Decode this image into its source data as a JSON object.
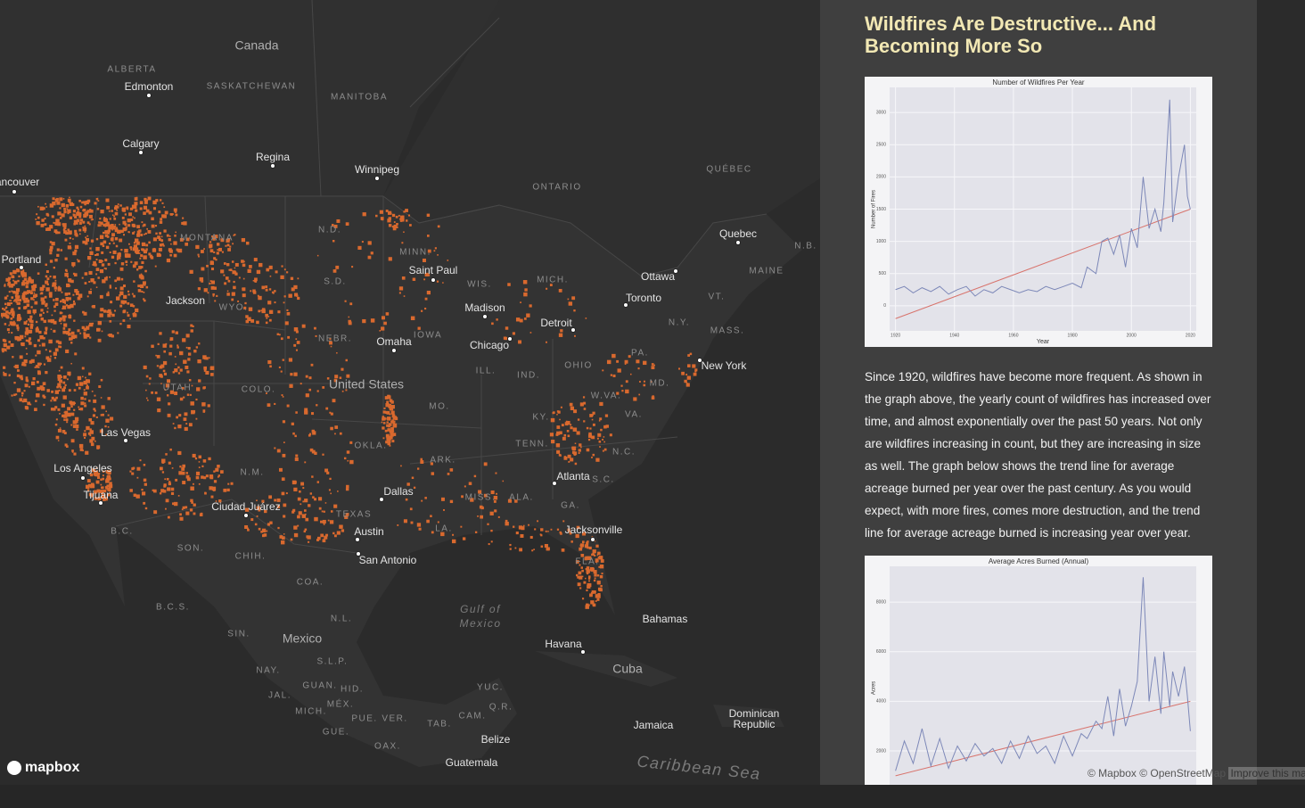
{
  "map": {
    "labels": [
      "Canada",
      "ALBERTA",
      "Edmonton",
      "SASKATCHEWAN",
      "MANITOBA",
      "Calgary",
      "Regina",
      "Winnipeg",
      "ONTARIO",
      "QUÉBEC",
      "Vancouver",
      "Quebec",
      "N.B.",
      "MAINE",
      "Ottawa",
      "Toronto",
      "VT.",
      "N.Y.",
      "MASS.",
      "New York",
      "PA.",
      "MD.",
      "N.D.",
      "MINN.",
      "Saint Paul",
      "MONTANA",
      "S.D.",
      "WIS.",
      "MICH.",
      "Portland",
      "Jackson",
      "WYO.",
      "Madison",
      "Detroit",
      "NEBR.",
      "IOWA",
      "Omaha",
      "Chicago",
      "OHIO",
      "ILL.",
      "IND.",
      "UTAH",
      "COLO.",
      "United States",
      "MO.",
      "W.VA.",
      "VA.",
      "KY.",
      "Las Vegas",
      "TENN.",
      "N.C.",
      "ARK.",
      "OKLA.",
      "Los Angeles",
      "Tijuana",
      "N.M.",
      "Atlanta",
      "S.C.",
      "Dallas",
      "MISS.",
      "ALA.",
      "Ciudad Juárez",
      "TEXAS",
      "GA.",
      "LA.",
      "Austin",
      "Jacksonville",
      "B.C.",
      "SON.",
      "CHIH.",
      "San Antonio",
      "FLA.",
      "COA.",
      "Gulf of",
      "Mexico",
      "B.C.S.",
      "N.L.",
      "Bahamas",
      "SIN.",
      "Mexico",
      "Havana",
      "S.L.P.",
      "NAY.",
      "Cuba",
      "GUAN.",
      "HID.",
      "YUC.",
      "JAL.",
      "MÉX.",
      "MICH.",
      "Q.R.",
      "CAM.",
      "PUE.",
      "VER.",
      "TAB.",
      "Dominican",
      "Republic",
      "Jamaica",
      "GUE.",
      "Belize",
      "OAX.",
      "Guatemala",
      "Caribbean Sea"
    ],
    "attribution": "© Mapbox © OpenStreetMap",
    "improve": "Improve this map",
    "logo": "mapbox"
  },
  "sidebar": {
    "title": "Wildfires Are Destructive... And Becoming More So",
    "paragraph": "Since 1920, wildfires have become more frequent. As shown in the graph above, the yearly count of wildfires has increased over time, and almost exponentially over the past 50 years. Not only are wildfires increasing in count, but they are increasing in size as well. The graph below shows the trend line for average acreage burned per year over the past century. As you would expect, with more fires, comes more destruction, and the trend line for average acreage burned is increasing year over year.",
    "charts": [
      {
        "type": "line",
        "title": "Number of Wildfires Per Year",
        "x_label": "Year",
        "y_label": "Number of Fires",
        "x": [
          1920,
          1923,
          1926,
          1929,
          1932,
          1935,
          1938,
          1941,
          1944,
          1947,
          1950,
          1953,
          1956,
          1959,
          1962,
          1965,
          1968,
          1971,
          1974,
          1977,
          1980,
          1983,
          1985,
          1988,
          1990,
          1992,
          1994,
          1996,
          1998,
          2000,
          2002,
          2004,
          2006,
          2008,
          2010,
          2011,
          2013,
          2014,
          2016,
          2018,
          2019,
          2020
        ],
        "values": [
          250,
          300,
          200,
          280,
          220,
          300,
          180,
          250,
          300,
          150,
          250,
          200,
          300,
          250,
          200,
          250,
          220,
          300,
          250,
          300,
          350,
          280,
          600,
          500,
          1000,
          1050,
          800,
          1100,
          600,
          1200,
          900,
          2000,
          1200,
          1500,
          1150,
          1600,
          3200,
          1300,
          2000,
          2500,
          1700,
          1500
        ],
        "color": "#7d88b8",
        "trend": {
          "x": [
            1920,
            2020
          ],
          "values": [
            -200,
            1500
          ],
          "color": "#d8736c"
        },
        "xlim": [
          1918,
          2022
        ],
        "ylim": [
          -390,
          3390
        ],
        "xticks": [
          1920,
          1940,
          1960,
          1980,
          2000,
          2020
        ],
        "yticks": [
          0,
          500,
          1000,
          1500,
          2000,
          2500,
          3000
        ]
      },
      {
        "type": "line",
        "title": "Average Acres Burned (Annual)",
        "y_label": "Acres",
        "x": [
          1920,
          1923,
          1926,
          1929,
          1932,
          1935,
          1938,
          1941,
          1944,
          1947,
          1950,
          1953,
          1956,
          1959,
          1962,
          1965,
          1968,
          1971,
          1974,
          1977,
          1980,
          1983,
          1985,
          1988,
          1990,
          1992,
          1994,
          1996,
          1998,
          2000,
          2002,
          2004,
          2006,
          2008,
          2010,
          2011,
          2013,
          2014,
          2016,
          2018,
          2019,
          2020
        ],
        "values": [
          1200,
          2400,
          1500,
          2900,
          1400,
          2500,
          1300,
          2200,
          1600,
          2300,
          1800,
          2100,
          1500,
          2400,
          1700,
          2600,
          1900,
          2200,
          1500,
          2600,
          1800,
          2700,
          2500,
          3200,
          2900,
          4200,
          2600,
          4500,
          3000,
          3800,
          4800,
          9000,
          4000,
          5800,
          3500,
          6000,
          3800,
          5200,
          4200,
          5400,
          4200,
          2800
        ],
        "color": "#7d88b8",
        "trend": {
          "x": [
            1920,
            2020
          ],
          "values": [
            1000,
            4000
          ],
          "color": "#d8736c"
        },
        "xlim": [
          1918,
          2022
        ],
        "ylim": [
          -370,
          9440
        ],
        "yticks": [
          2000,
          4000,
          6000,
          8000
        ]
      }
    ]
  }
}
